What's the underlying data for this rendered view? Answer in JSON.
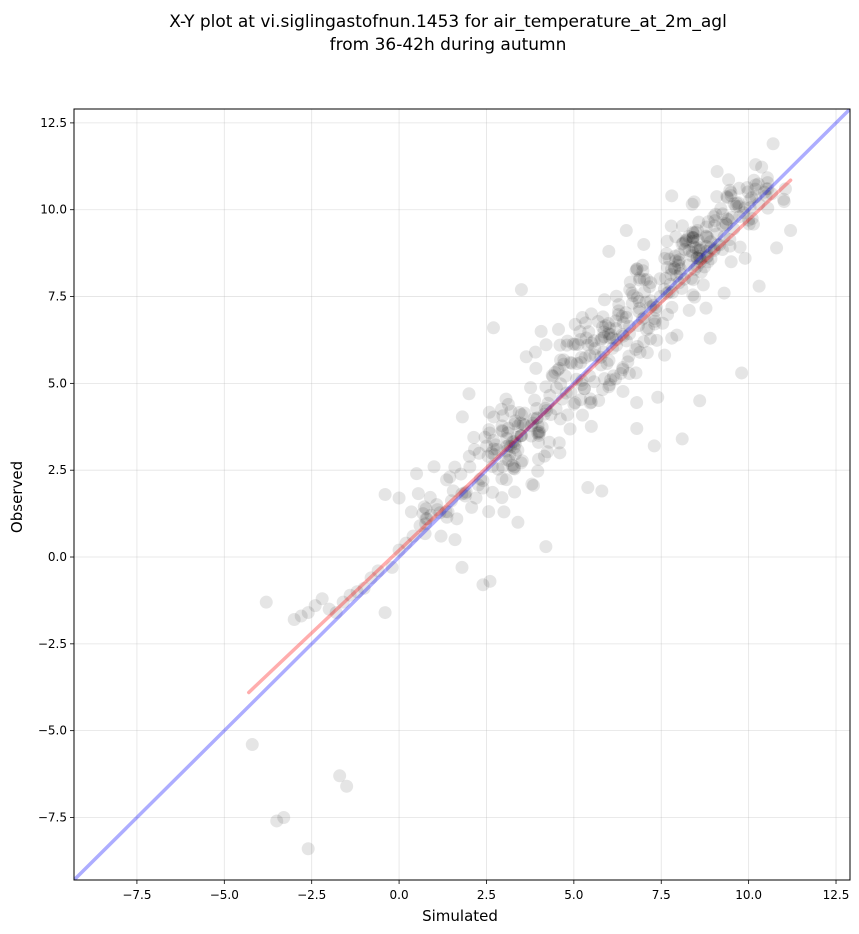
{
  "chart_data": {
    "type": "scatter",
    "title": "X-Y plot at vi.siglingastofnun.1453 for air_temperature_at_2m_agl",
    "subtitle": "from 36-42h during autumn",
    "xlabel": "Simulated",
    "ylabel": "Observed",
    "xlim": [
      -9.3,
      12.9
    ],
    "ylim": [
      -9.3,
      12.9
    ],
    "xticks": [
      -7.5,
      -5.0,
      -2.5,
      0.0,
      2.5,
      5.0,
      7.5,
      10.0,
      12.5
    ],
    "yticks": [
      -7.5,
      -5.0,
      -2.5,
      0.0,
      2.5,
      5.0,
      7.5,
      10.0,
      12.5
    ],
    "xtick_labels": [
      "−7.5",
      "−5.0",
      "−2.5",
      "0.0",
      "2.5",
      "5.0",
      "7.5",
      "10.0",
      "12.5"
    ],
    "ytick_labels": [
      "−7.5",
      "−5.0",
      "−2.5",
      "0.0",
      "2.5",
      "5.0",
      "7.5",
      "10.0",
      "12.5"
    ],
    "grid": true,
    "point_color": "#000000",
    "point_opacity": 0.1,
    "points": [
      [
        -4.2,
        -5.4
      ],
      [
        -3.5,
        -7.6
      ],
      [
        -3.3,
        -7.5
      ],
      [
        -2.6,
        -8.4
      ],
      [
        -1.7,
        -6.3
      ],
      [
        -1.5,
        -6.6
      ],
      [
        -3.8,
        -1.3
      ],
      [
        -3.0,
        -1.8
      ],
      [
        -2.8,
        -1.7
      ],
      [
        -2.6,
        -1.6
      ],
      [
        -2.4,
        -1.4
      ],
      [
        -2.2,
        -1.2
      ],
      [
        -2.0,
        -1.5
      ],
      [
        -1.8,
        -1.6
      ],
      [
        -1.6,
        -1.3
      ],
      [
        -1.4,
        -1.1
      ],
      [
        -1.2,
        -1.0
      ],
      [
        -1.0,
        -0.9
      ],
      [
        -0.8,
        -0.6
      ],
      [
        -0.6,
        -0.4
      ],
      [
        -0.4,
        -1.6
      ],
      [
        -0.2,
        -0.3
      ],
      [
        0.0,
        0.2
      ],
      [
        0.2,
        0.4
      ],
      [
        0.4,
        0.6
      ],
      [
        0.6,
        0.9
      ],
      [
        0.8,
        1.1
      ],
      [
        -0.4,
        1.8
      ],
      [
        0.0,
        1.7
      ],
      [
        0.5,
        2.4
      ],
      [
        1.0,
        2.6
      ],
      [
        1.2,
        0.6
      ],
      [
        1.4,
        1.3
      ],
      [
        1.6,
        0.5
      ],
      [
        1.8,
        -0.3
      ],
      [
        2.0,
        4.7
      ],
      [
        2.2,
        1.7
      ],
      [
        2.4,
        2.2
      ],
      [
        2.4,
        -0.8
      ],
      [
        2.6,
        -0.7
      ],
      [
        2.7,
        6.6
      ],
      [
        2.8,
        3.1
      ],
      [
        3.0,
        1.3
      ],
      [
        3.2,
        4.2
      ],
      [
        3.3,
        2.6
      ],
      [
        3.4,
        1.0
      ],
      [
        3.5,
        4.1
      ],
      [
        3.5,
        7.7
      ],
      [
        3.6,
        3.8
      ],
      [
        3.8,
        2.1
      ],
      [
        3.9,
        5.9
      ],
      [
        4.0,
        3.5
      ],
      [
        4.2,
        0.3
      ],
      [
        4.2,
        4.9
      ],
      [
        4.4,
        5.2
      ],
      [
        4.6,
        3.0
      ],
      [
        4.8,
        6.1
      ],
      [
        5.0,
        4.4
      ],
      [
        5.2,
        5.6
      ],
      [
        5.4,
        2.0
      ],
      [
        5.5,
        7.0
      ],
      [
        5.6,
        6.0
      ],
      [
        5.8,
        1.9
      ],
      [
        6.0,
        4.9
      ],
      [
        6.0,
        8.8
      ],
      [
        6.2,
        6.8
      ],
      [
        6.4,
        5.4
      ],
      [
        6.5,
        9.4
      ],
      [
        6.6,
        7.7
      ],
      [
        6.8,
        3.7
      ],
      [
        7.0,
        6.2
      ],
      [
        7.0,
        9.0
      ],
      [
        7.2,
        7.9
      ],
      [
        7.3,
        3.2
      ],
      [
        7.4,
        4.6
      ],
      [
        7.6,
        8.6
      ],
      [
        7.8,
        6.3
      ],
      [
        7.8,
        10.4
      ],
      [
        8.0,
        8.4
      ],
      [
        8.1,
        3.4
      ],
      [
        8.3,
        7.1
      ],
      [
        8.4,
        9.2
      ],
      [
        8.6,
        4.5
      ],
      [
        8.8,
        8.8
      ],
      [
        8.9,
        6.3
      ],
      [
        9.0,
        9.8
      ],
      [
        9.1,
        11.1
      ],
      [
        9.3,
        7.6
      ],
      [
        9.5,
        8.5
      ],
      [
        9.7,
        10.2
      ],
      [
        9.8,
        5.3
      ],
      [
        9.9,
        8.6
      ],
      [
        10.0,
        9.7
      ],
      [
        10.2,
        11.3
      ],
      [
        10.3,
        7.8
      ],
      [
        10.5,
        10.4
      ],
      [
        10.7,
        11.9
      ],
      [
        10.8,
        8.9
      ],
      [
        11.0,
        10.3
      ],
      [
        11.2,
        9.4
      ]
    ],
    "cloud": [
      [
        5.9,
        6.0,
        1.5,
        1.1,
        160
      ],
      [
        8.5,
        8.9,
        1.0,
        0.7,
        120
      ],
      [
        3.2,
        3.2,
        0.9,
        0.8,
        90
      ],
      [
        1.2,
        1.4,
        0.7,
        0.6,
        25
      ],
      [
        10.1,
        10.3,
        0.6,
        0.5,
        30
      ]
    ],
    "lines": [
      {
        "color": "#0000ff",
        "opacity": 0.32,
        "x": [
          -9.3,
          12.9
        ],
        "y": [
          -9.3,
          12.9
        ]
      },
      {
        "color": "#ff0000",
        "opacity": 0.32,
        "x": [
          -4.3,
          11.2
        ],
        "y": [
          -3.9,
          10.85
        ]
      }
    ]
  }
}
